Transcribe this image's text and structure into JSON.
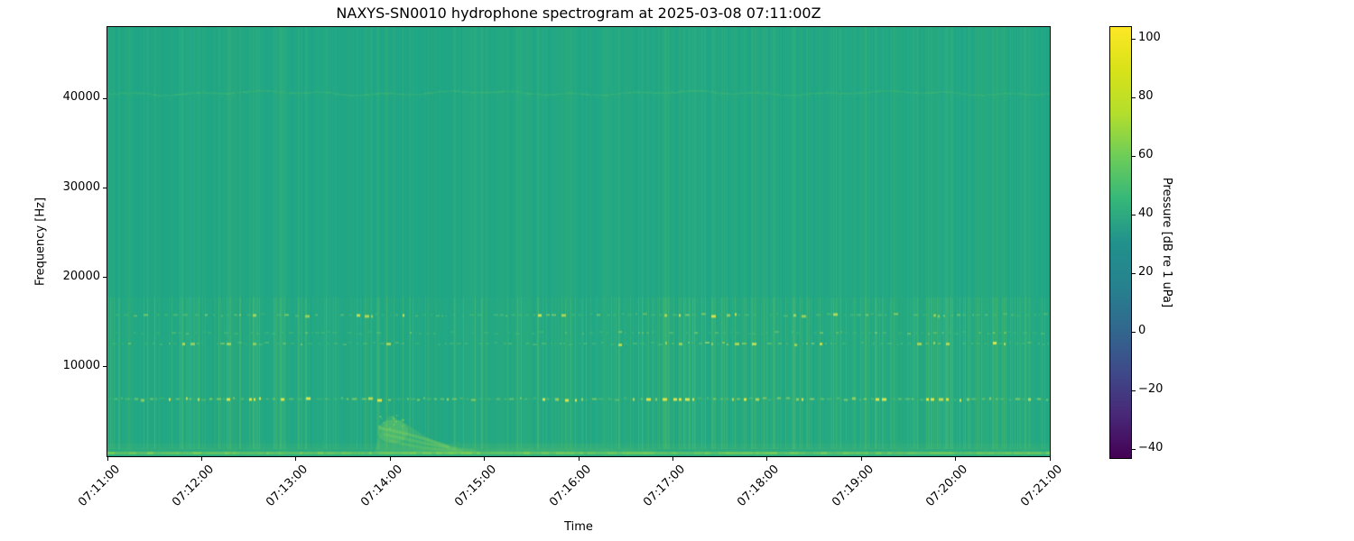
{
  "figure": {
    "title": "NAXYS-SN0010 hydrophone spectrogram at 2025-03-08 07:11:00Z",
    "xlabel": "Time",
    "ylabel": "Frequency [Hz]"
  },
  "chart_data": {
    "type": "heatmap",
    "subtype": "spectrogram",
    "title": "NAXYS-SN0010 hydrophone spectrogram at 2025-03-08 07:11:00Z",
    "xlabel": "Time",
    "ylabel": "Frequency [Hz]",
    "x_ticks": [
      "07:11:00",
      "07:12:00",
      "07:13:00",
      "07:14:00",
      "07:15:00",
      "07:16:00",
      "07:17:00",
      "07:18:00",
      "07:19:00",
      "07:20:00",
      "07:21:00"
    ],
    "x_span_minutes": 10,
    "y_ticks": [
      10000,
      20000,
      30000,
      40000
    ],
    "ylim": [
      0,
      48000
    ],
    "grid": false,
    "colorbar": {
      "label": "Pressure [dB re 1 uPa]",
      "ticks": [
        100,
        80,
        60,
        40,
        20,
        0,
        -20,
        -40
      ],
      "vmin": -43,
      "vmax": 104,
      "colormap": "viridis",
      "stops": [
        "#440154",
        "#482878",
        "#3e4a89",
        "#31688e",
        "#26828e",
        "#21918c",
        "#35b779",
        "#6dcd59",
        "#b4de2c",
        "#d8e219",
        "#fde725"
      ]
    },
    "background_level_db": 48,
    "background_color": "#1ea688",
    "features": {
      "tonal_bands": [
        {
          "freq_hz": 6400,
          "approx_level_db": 80,
          "strength": 1.0,
          "style": "dashed"
        },
        {
          "freq_hz": 12600,
          "approx_level_db": 65,
          "strength": 0.55,
          "style": "dashed"
        },
        {
          "freq_hz": 13800,
          "approx_level_db": 60,
          "strength": 0.38,
          "style": "dashed"
        },
        {
          "freq_hz": 15800,
          "approx_level_db": 68,
          "strength": 0.62,
          "style": "dashed"
        },
        {
          "freq_hz": 40700,
          "approx_level_db": 55,
          "strength": 0.28,
          "style": "continuous-wavy"
        }
      ],
      "broadband_transients": {
        "description": "narrow vertical click striations spanning most of the band, brightest below 16 kHz",
        "dense_intervals": [
          [
            "07:16:10",
            "07:18:50"
          ],
          [
            "07:19:20",
            "07:20:45"
          ]
        ],
        "prominent_times": [
          "07:11:02",
          "07:11:07",
          "07:11:25",
          "07:12:46",
          "07:13:01",
          "07:13:06",
          "07:13:44",
          "07:13:52",
          "07:14:58",
          "07:16:25",
          "07:16:40",
          "07:16:55",
          "07:17:10",
          "07:17:31",
          "07:17:58",
          "07:18:04",
          "07:18:17",
          "07:19:02",
          "07:19:44",
          "07:20:06",
          "07:20:24",
          "07:20:32"
        ]
      },
      "low_freq_event": {
        "start": "07:13:50",
        "peak": "07:14:03",
        "end": "07:14:55",
        "freq_max_hz": 5000,
        "approx_level_db": 70,
        "description": "descending low-frequency chirp / noise wash near 07:14:00"
      },
      "seafloor_band": {
        "freq_hz": 300,
        "approx_level_db": 65,
        "description": "bright continuous low-frequency band along bottom edge"
      }
    },
    "texture_colors": {
      "stripe": "#7bd34f",
      "wide_column": "#4cbd76",
      "dash_mid": "#58c46c",
      "dash_bright": "#e6e84b",
      "bottom_line": "#7ccf53",
      "event_wash": "#86d45c",
      "event_arc": "#9bdc55"
    },
    "seed": 1337
  }
}
